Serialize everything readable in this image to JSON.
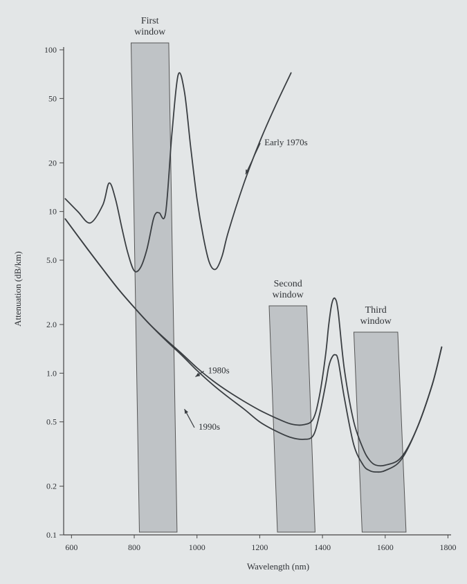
{
  "chart_data": {
    "type": "line",
    "title": "",
    "xlabel": "Wavelength (nm)",
    "ylabel": "Attenuation (dB/km)",
    "y_scale": "log",
    "x_ticks": [
      600,
      800,
      1000,
      1200,
      1400,
      1600,
      1800
    ],
    "x_tick_labels": [
      "600",
      "800",
      "1000",
      "1200",
      "1400",
      "1600",
      "1800"
    ],
    "y_ticks": [
      100,
      50,
      20,
      10,
      5.0,
      2.0,
      1.0,
      0.5,
      0.2,
      0.1
    ],
    "y_tick_labels": [
      "100",
      "50",
      "20",
      "10",
      "5.0",
      "2.0",
      "1.0",
      "0.5",
      "0.2",
      "0.1"
    ],
    "xlim": [
      575,
      1810
    ],
    "ylim": [
      0.1,
      100
    ],
    "grid": false,
    "legend": "none",
    "windows": [
      {
        "label_lines": [
          "First",
          "window"
        ],
        "x_start": 790,
        "x_end": 910
      },
      {
        "label_lines": [
          "Second",
          "window"
        ],
        "x_start": 1230,
        "x_end": 1350
      },
      {
        "label_lines": [
          "Third",
          "window"
        ],
        "x_start": 1500,
        "x_end": 1640
      }
    ],
    "series": [
      {
        "name": "Early 1970s",
        "x": [
          580,
          620,
          660,
          700,
          720,
          740,
          760,
          780,
          800,
          820,
          840,
          860,
          870,
          880,
          900,
          920,
          940,
          960,
          980,
          1000,
          1020,
          1040,
          1060,
          1080,
          1100,
          1150,
          1200,
          1250,
          1300
        ],
        "y": [
          12,
          10,
          8.5,
          11,
          15,
          12,
          8,
          5.5,
          4.3,
          4.5,
          5.8,
          8.8,
          9.8,
          9.8,
          9.8,
          30,
          70,
          55,
          25,
          12,
          7,
          4.8,
          4.4,
          5.3,
          7.5,
          15,
          27,
          45,
          72
        ]
      },
      {
        "name": "1980s",
        "x": [
          580,
          650,
          700,
          750,
          800,
          850,
          900,
          950,
          1000,
          1050,
          1100,
          1150,
          1200,
          1250,
          1300,
          1340,
          1370,
          1390,
          1410,
          1420,
          1430,
          1440,
          1450,
          1470,
          1500,
          1530,
          1550,
          1570,
          1600,
          1650,
          1700,
          1750,
          1780
        ],
        "y": [
          9,
          5.9,
          4.4,
          3.3,
          2.55,
          2.0,
          1.62,
          1.33,
          1.08,
          0.9,
          0.77,
          0.67,
          0.59,
          0.53,
          0.485,
          0.48,
          0.52,
          0.72,
          1.3,
          2.0,
          2.7,
          2.9,
          2.4,
          1.05,
          0.5,
          0.34,
          0.29,
          0.27,
          0.27,
          0.3,
          0.45,
          0.85,
          1.45
        ]
      },
      {
        "name": "1990s",
        "x": [
          580,
          650,
          700,
          750,
          800,
          850,
          900,
          950,
          1000,
          1050,
          1100,
          1150,
          1200,
          1250,
          1300,
          1340,
          1370,
          1390,
          1410,
          1420,
          1430,
          1440,
          1450,
          1470,
          1500,
          1530,
          1550,
          1570,
          1600,
          1650,
          1700,
          1750,
          1780
        ],
        "y": [
          9,
          5.9,
          4.4,
          3.3,
          2.55,
          2.0,
          1.6,
          1.3,
          1.04,
          0.85,
          0.71,
          0.6,
          0.5,
          0.44,
          0.4,
          0.39,
          0.41,
          0.55,
          0.85,
          1.1,
          1.25,
          1.3,
          1.2,
          0.7,
          0.36,
          0.27,
          0.25,
          0.245,
          0.25,
          0.29,
          0.45,
          0.85,
          1.45
        ]
      }
    ],
    "annotations": [
      {
        "text": "Early 1970s",
        "x": 1215,
        "y": 27,
        "arrow_to": [
          1155,
          17
        ]
      },
      {
        "text": "1980s",
        "x": 1035,
        "y": 1.05,
        "arrow_to": [
          995,
          0.95
        ]
      },
      {
        "text": "1990s",
        "x": 1005,
        "y": 0.47,
        "arrow_to": [
          960,
          0.6
        ]
      }
    ]
  }
}
